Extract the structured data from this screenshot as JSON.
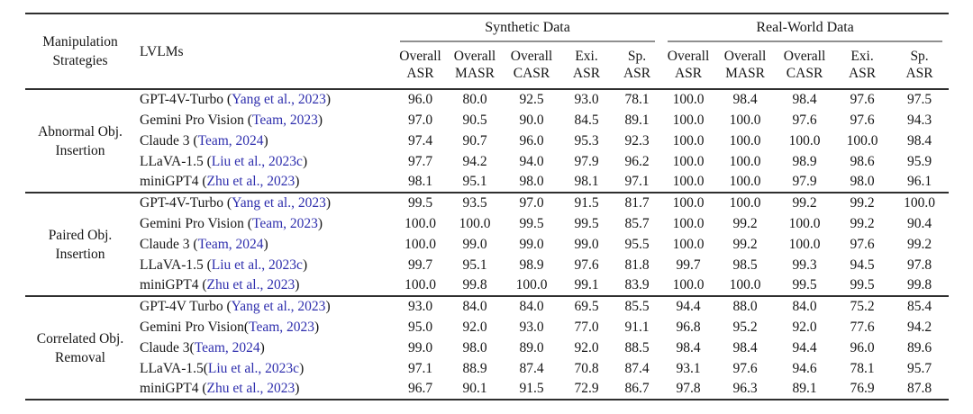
{
  "colors": {
    "citation": "#2e2ead",
    "rule_heavy": "#2f2f2f",
    "rule_light": "#8f8f8f",
    "background": "#ffffff",
    "text": "#161616"
  },
  "table": {
    "header": {
      "strategy_line1": "Manipulation",
      "strategy_line2": "Strategies",
      "lvlms": "LVLMs",
      "synthetic": "Synthetic Data",
      "real_world": "Real-World Data",
      "metrics": [
        {
          "line1": "Overall",
          "line2": "ASR"
        },
        {
          "line1": "Overall",
          "line2": "MASR"
        },
        {
          "line1": "Overall",
          "line2": "CASR"
        },
        {
          "line1": "Exi.",
          "line2": "ASR"
        },
        {
          "line1": "Sp.",
          "line2": "ASR"
        }
      ]
    },
    "groups": [
      {
        "strategy_line1": "Abnormal Obj.",
        "strategy_line2": "Insertion",
        "rows": [
          {
            "model": "GPT-4V-Turbo (",
            "cite": "Yang et al., 2023",
            "close": ")",
            "syn": [
              "96.0",
              "80.0",
              "92.5",
              "93.0",
              "78.1"
            ],
            "real": [
              "100.0",
              "98.4",
              "98.4",
              "97.6",
              "97.5"
            ]
          },
          {
            "model": "Gemini Pro Vision (",
            "cite": "Team, 2023",
            "close": ")",
            "syn": [
              "97.0",
              "90.5",
              "90.0",
              "84.5",
              "89.1"
            ],
            "real": [
              "100.0",
              "100.0",
              "97.6",
              "97.6",
              "94.3"
            ]
          },
          {
            "model": "Claude 3 (",
            "cite": "Team, 2024",
            "close": ")",
            "syn": [
              "97.4",
              "90.7",
              "96.0",
              "95.3",
              "92.3"
            ],
            "real": [
              "100.0",
              "100.0",
              "100.0",
              "100.0",
              "98.4"
            ]
          },
          {
            "model": "LLaVA-1.5 (",
            "cite": "Liu et al., 2023c",
            "close": ")",
            "syn": [
              "97.7",
              "94.2",
              "94.0",
              "97.9",
              "96.2"
            ],
            "real": [
              "100.0",
              "100.0",
              "98.9",
              "98.6",
              "95.9"
            ]
          },
          {
            "model": "miniGPT4 (",
            "cite": "Zhu et al., 2023",
            "close": ")",
            "syn": [
              "98.1",
              "95.1",
              "98.0",
              "98.1",
              "97.1"
            ],
            "real": [
              "100.0",
              "100.0",
              "97.9",
              "98.0",
              "96.1"
            ]
          }
        ]
      },
      {
        "strategy_line1": "Paired Obj.",
        "strategy_line2": "Insertion",
        "rows": [
          {
            "model": "GPT-4V-Turbo (",
            "cite": "Yang et al., 2023",
            "close": ")",
            "syn": [
              "99.5",
              "93.5",
              "97.0",
              "91.5",
              "81.7"
            ],
            "real": [
              "100.0",
              "100.0",
              "99.2",
              "99.2",
              "100.0"
            ]
          },
          {
            "model": "Gemini Pro Vision (",
            "cite": "Team, 2023",
            "close": ")",
            "syn": [
              "100.0",
              "100.0",
              "99.5",
              "99.5",
              "85.7"
            ],
            "real": [
              "100.0",
              "99.2",
              "100.0",
              "99.2",
              "90.4"
            ]
          },
          {
            "model": "Claude 3 (",
            "cite": "Team, 2024",
            "close": ")",
            "syn": [
              "100.0",
              "99.0",
              "99.0",
              "99.0",
              "95.5"
            ],
            "real": [
              "100.0",
              "99.2",
              "100.0",
              "97.6",
              "99.2"
            ]
          },
          {
            "model": "LLaVA-1.5 (",
            "cite": "Liu et al., 2023c",
            "close": ")",
            "syn": [
              "99.7",
              "95.1",
              "98.9",
              "97.6",
              "81.8"
            ],
            "real": [
              "99.7",
              "98.5",
              "99.3",
              "94.5",
              "97.8"
            ]
          },
          {
            "model": "miniGPT4 (",
            "cite": "Zhu et al., 2023",
            "close": ")",
            "syn": [
              "100.0",
              "99.8",
              "100.0",
              "99.1",
              "83.9"
            ],
            "real": [
              "100.0",
              "100.0",
              "99.5",
              "99.5",
              "99.8"
            ]
          }
        ]
      },
      {
        "strategy_line1": "Correlated Obj.",
        "strategy_line2": "Removal",
        "rows": [
          {
            "model": "GPT-4V Turbo (",
            "cite": "Yang et al., 2023",
            "close": ")",
            "syn": [
              "93.0",
              "84.0",
              "84.0",
              "69.5",
              "85.5"
            ],
            "real": [
              "94.4",
              "88.0",
              "84.0",
              "75.2",
              "85.4"
            ]
          },
          {
            "model": "Gemini Pro Vision(",
            "cite": "Team, 2023",
            "close": ")",
            "syn": [
              "95.0",
              "92.0",
              "93.0",
              "77.0",
              "91.1"
            ],
            "real": [
              "96.8",
              "95.2",
              "92.0",
              "77.6",
              "94.2"
            ]
          },
          {
            "model": "Claude 3(",
            "cite": "Team, 2024",
            "close": ")",
            "syn": [
              "99.0",
              "98.0",
              "89.0",
              "92.0",
              "88.5"
            ],
            "real": [
              "98.4",
              "98.4",
              "94.4",
              "96.0",
              "89.6"
            ]
          },
          {
            "model": "LLaVA-1.5(",
            "cite": "Liu et al., 2023c",
            "close": ")",
            "syn": [
              "97.1",
              "88.9",
              "87.4",
              "70.8",
              "87.4"
            ],
            "real": [
              "93.1",
              "97.6",
              "94.6",
              "78.1",
              "95.7"
            ]
          },
          {
            "model": "miniGPT4 (",
            "cite": "Zhu et al., 2023",
            "close": ")",
            "syn": [
              "96.7",
              "90.1",
              "91.5",
              "72.9",
              "86.7"
            ],
            "real": [
              "97.8",
              "96.3",
              "89.1",
              "76.9",
              "87.8"
            ]
          }
        ]
      }
    ]
  }
}
